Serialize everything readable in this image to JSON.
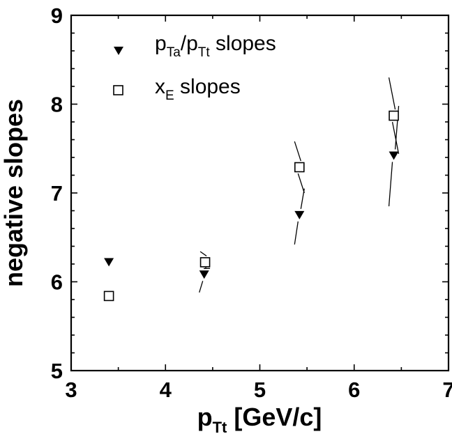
{
  "chart_data": {
    "type": "scatter",
    "title": "",
    "xlabel": {
      "main": "p",
      "sub": "Tt",
      "rest": " [GeV/c]"
    },
    "ylabel": "negative slopes",
    "xlim": [
      3,
      7
    ],
    "ylim": [
      5,
      9
    ],
    "x_ticks": [
      "3",
      "4",
      "5",
      "6",
      "7"
    ],
    "y_ticks": [
      "5",
      "6",
      "7",
      "8",
      "9"
    ],
    "grid": false,
    "legend_position": "top-left",
    "series": [
      {
        "legend": {
          "p1": "p",
          "s1": "Ta",
          "p2": "/p",
          "s2": "Tt",
          "p3": " slopes"
        },
        "marker": "filled-triangle-down",
        "color": "#000000",
        "x": [
          3.4,
          4.41,
          5.42,
          6.42
        ],
        "y": [
          6.22,
          6.08,
          6.75,
          7.42
        ],
        "error_band": [
          null,
          [
            5.88,
            6.27
          ],
          [
            6.42,
            7.05
          ],
          [
            6.85,
            7.98
          ]
        ]
      },
      {
        "legend": {
          "p1": "x",
          "s1": "E",
          "p2": " slopes"
        },
        "marker": "open-square",
        "color": "#000000",
        "x": [
          3.4,
          4.42,
          5.42,
          6.42
        ],
        "y": [
          5.84,
          6.22,
          7.29,
          7.87
        ],
        "error_band": [
          null,
          [
            6.15,
            6.34
          ],
          [
            7.0,
            7.58
          ],
          [
            7.44,
            8.3
          ]
        ]
      }
    ]
  }
}
